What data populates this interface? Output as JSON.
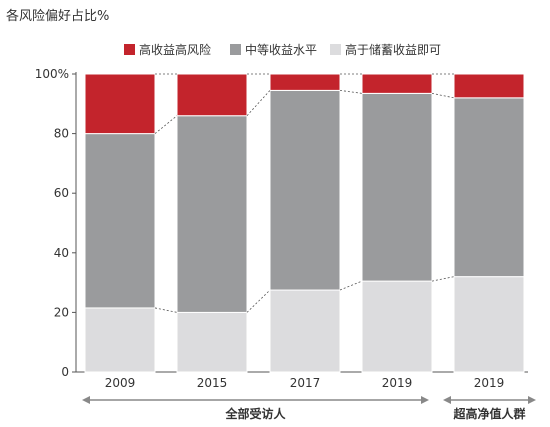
{
  "chart_data": {
    "type": "bar",
    "stacked": true,
    "percent": true,
    "title": "各风险偏好占比%",
    "categories": [
      "2009",
      "2015",
      "2017",
      "2019",
      "2019"
    ],
    "series": [
      {
        "name": "高于储蓄收益即可",
        "values": [
          21.5,
          20,
          27.5,
          30.5,
          32
        ],
        "color": "#dcdcde"
      },
      {
        "name": "中等收益水平",
        "values": [
          58.5,
          66,
          67,
          63,
          60
        ],
        "color": "#9a9b9d"
      },
      {
        "name": "高收益高风险",
        "values": [
          20,
          14,
          5.5,
          6.5,
          8
        ],
        "color": "#c3242c"
      }
    ],
    "legend_order": [
      2,
      1,
      0
    ],
    "legend_position": "top",
    "ylim": [
      0,
      100
    ],
    "yticks": [
      "0",
      "20",
      "40",
      "60",
      "80",
      "100%"
    ],
    "ytick_values": [
      0,
      20,
      40,
      60,
      80,
      100
    ],
    "groups": [
      {
        "label": "全部受访人",
        "categories": [
          0,
          1,
          2,
          3
        ]
      },
      {
        "label": "超高净值人群",
        "categories": [
          4
        ]
      }
    ]
  }
}
